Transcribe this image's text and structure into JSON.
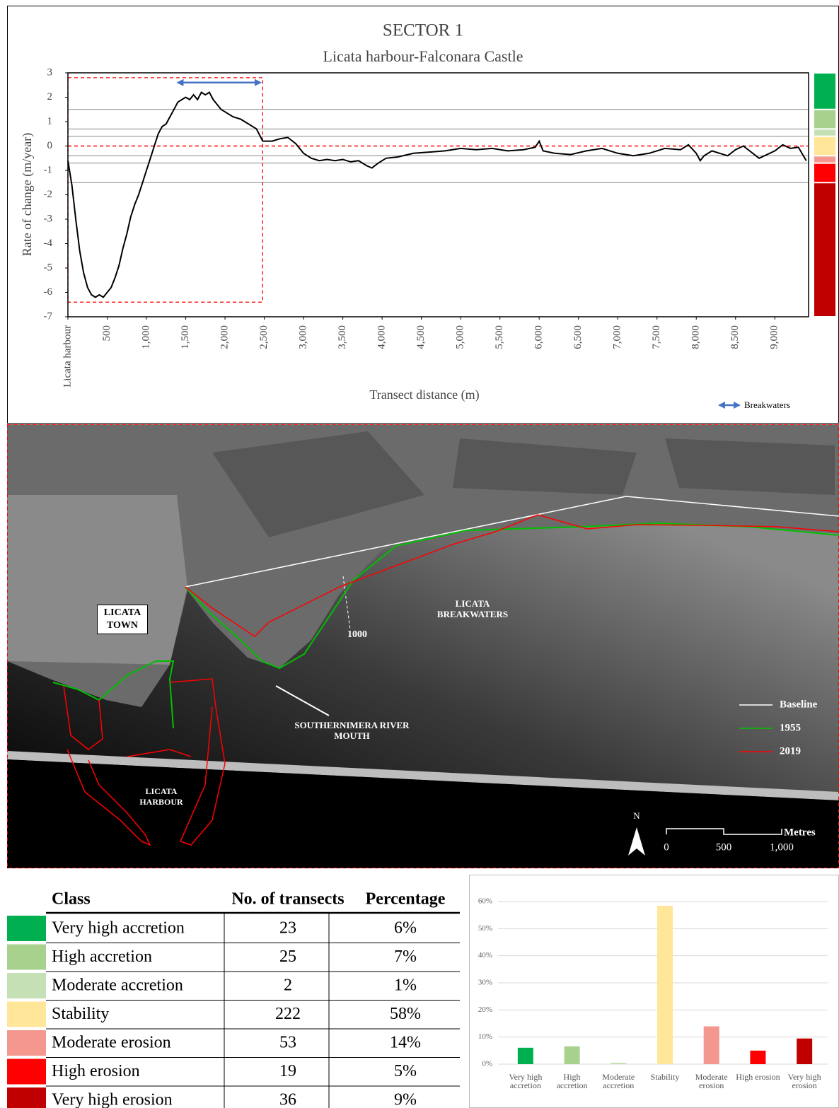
{
  "chart_data": [
    {
      "type": "line",
      "title": "SECTOR 1",
      "subtitle": "Licata harbour-Falconara Castle",
      "x_label": "Transect distance (m)",
      "y_label": "Rate of change (m/year)",
      "x": [
        0,
        50,
        100,
        150,
        200,
        250,
        300,
        350,
        400,
        450,
        500,
        550,
        600,
        650,
        700,
        750,
        800,
        850,
        900,
        950,
        1000,
        1050,
        1100,
        1150,
        1200,
        1250,
        1300,
        1350,
        1400,
        1450,
        1500,
        1550,
        1600,
        1650,
        1700,
        1750,
        1800,
        1850,
        1900,
        1950,
        2000,
        2100,
        2200,
        2300,
        2400,
        2480,
        2600,
        2700,
        2800,
        2900,
        3000,
        3100,
        3200,
        3300,
        3400,
        3500,
        3600,
        3700,
        3800,
        3870,
        3950,
        4050,
        4200,
        4400,
        4600,
        4800,
        5000,
        5200,
        5400,
        5600,
        5800,
        5950,
        6000,
        6050,
        6200,
        6400,
        6600,
        6800,
        7000,
        7200,
        7400,
        7600,
        7800,
        7900,
        8000,
        8050,
        8100,
        8200,
        8400,
        8500,
        8600,
        8800,
        9000,
        9100,
        9200,
        9300,
        9400
      ],
      "values": [
        -0.6,
        -1.6,
        -3.0,
        -4.3,
        -5.2,
        -5.8,
        -6.1,
        -6.2,
        -6.1,
        -6.2,
        -6.0,
        -5.8,
        -5.4,
        -4.9,
        -4.2,
        -3.6,
        -2.9,
        -2.4,
        -2.0,
        -1.5,
        -1.0,
        -0.5,
        0.0,
        0.5,
        0.8,
        0.9,
        1.2,
        1.5,
        1.8,
        1.9,
        2.0,
        1.9,
        2.1,
        1.9,
        2.2,
        2.1,
        2.2,
        1.9,
        1.7,
        1.5,
        1.4,
        1.2,
        1.1,
        0.9,
        0.7,
        0.2,
        0.2,
        0.3,
        0.35,
        0.1,
        -0.3,
        -0.5,
        -0.6,
        -0.55,
        -0.6,
        -0.55,
        -0.65,
        -0.6,
        -0.8,
        -0.9,
        -0.7,
        -0.5,
        -0.45,
        -0.3,
        -0.25,
        -0.2,
        -0.1,
        -0.15,
        -0.1,
        -0.2,
        -0.15,
        -0.05,
        0.2,
        -0.2,
        -0.3,
        -0.35,
        -0.2,
        -0.1,
        -0.3,
        -0.4,
        -0.3,
        -0.1,
        -0.15,
        0.05,
        -0.3,
        -0.6,
        -0.4,
        -0.2,
        -0.4,
        -0.15,
        0.0,
        -0.5,
        -0.2,
        0.05,
        -0.1,
        -0.05,
        -0.6
      ],
      "color": "#000000",
      "xlim": [
        0,
        9430
      ],
      "ylim": [
        -7,
        3
      ],
      "xticks": [
        {
          "value": 0,
          "label": "Licata harbour"
        },
        500,
        {
          "value": 1000,
          "label": "1,000"
        },
        {
          "value": 1500,
          "label": "1,500"
        },
        {
          "value": 2000,
          "label": "2,000"
        },
        {
          "value": 2500,
          "label": "2,500"
        },
        {
          "value": 3000,
          "label": "3,000"
        },
        {
          "value": 3500,
          "label": "3,500"
        },
        {
          "value": 4000,
          "label": "4,000"
        },
        {
          "value": 4500,
          "label": "4,500"
        },
        {
          "value": 5000,
          "label": "5,000"
        },
        {
          "value": 5500,
          "label": "5,500"
        },
        {
          "value": 6000,
          "label": "6,000"
        },
        {
          "value": 6500,
          "label": "6,500"
        },
        {
          "value": 7000,
          "label": "7,000"
        },
        {
          "value": 7500,
          "label": "7,500"
        },
        {
          "value": 8000,
          "label": "8,000"
        },
        {
          "value": 8500,
          "label": "8,500"
        },
        {
          "value": 9000,
          "label": "9,000"
        }
      ],
      "yticks": [
        3,
        2,
        1,
        0,
        -1,
        -2,
        -3,
        -4,
        -5,
        -6,
        -7
      ],
      "bands": [
        {
          "from": 1.5,
          "to": 3,
          "color": "#00b050"
        },
        {
          "from": 0.7,
          "to": 1.5,
          "color": "#a9d18e"
        },
        {
          "from": 0.4,
          "to": 0.7,
          "color": "#c5e0b4"
        },
        {
          "from": -0.4,
          "to": 0.4,
          "color": "#ffe699"
        },
        {
          "from": -0.7,
          "to": -0.4,
          "color": "#f4978e"
        },
        {
          "from": -1.5,
          "to": -0.7,
          "color": "#ff0000"
        },
        {
          "from": -7,
          "to": -1.5,
          "color": "#c00000"
        }
      ],
      "zero_line": {
        "value": 0,
        "color": "#ff0000"
      },
      "breakwaters": {
        "label": "Breakwaters",
        "x": [
          1400,
          2450
        ],
        "y": 2.6,
        "color": "#4472c4"
      },
      "focus_box": {
        "x": [
          0,
          2480
        ],
        "y": [
          -6.4,
          2.8
        ],
        "color": "#ff0000"
      }
    },
    {
      "type": "bar",
      "categories": [
        "Very high accretion",
        "High accretion",
        "Moderate accretion",
        "Stability",
        "Moderate erosion",
        "High erosion",
        "Very high erosion"
      ],
      "values": [
        6.05,
        6.58,
        0.53,
        58.42,
        13.95,
        5.0,
        9.47
      ],
      "colors": [
        "#00b050",
        "#a9d18e",
        "#c5e0b4",
        "#ffe699",
        "#f4978e",
        "#ff0000",
        "#c00000"
      ],
      "ylim": [
        0,
        60
      ],
      "yticks": [
        {
          "value": 0,
          "label": "0%"
        },
        {
          "value": 10,
          "label": "10%"
        },
        {
          "value": 20,
          "label": "20%"
        },
        {
          "value": 30,
          "label": "30%"
        },
        {
          "value": 40,
          "label": "40%"
        },
        {
          "value": 50,
          "label": "50%"
        },
        {
          "value": 60,
          "label": "60%"
        }
      ],
      "grid": true
    }
  ],
  "map": {
    "labels": {
      "town": "LICATA TOWN",
      "breakwaters": "LICATA BREAKWATERS",
      "transect": "1000",
      "river_mouth": "SOUTHERNIMERA RIVER MOUTH",
      "harbour": "LICATA HARBOUR",
      "north": "N"
    },
    "legend": [
      {
        "name": "Baseline",
        "color": "#ffffff"
      },
      {
        "name": "1955",
        "color": "#00c000"
      },
      {
        "name": "2019",
        "color": "#ff0000"
      }
    ],
    "scale": {
      "ticks": [
        "0",
        "500",
        "1,000"
      ],
      "unit": "Metres"
    }
  },
  "table": {
    "header": [
      "Class",
      "No. of transects",
      "Percentage"
    ],
    "rows": [
      {
        "color": "#00b050",
        "cells": [
          "Very high accretion",
          23,
          "6%"
        ]
      },
      {
        "color": "#a9d18e",
        "cells": [
          "High accretion",
          25,
          "7%"
        ]
      },
      {
        "color": "#c5e0b4",
        "cells": [
          "Moderate accretion",
          2,
          "1%"
        ]
      },
      {
        "color": "#ffe699",
        "cells": [
          "Stability",
          222,
          "58%"
        ]
      },
      {
        "color": "#f4978e",
        "cells": [
          "Moderate erosion",
          53,
          "14%"
        ]
      },
      {
        "color": "#ff0000",
        "cells": [
          "High erosion",
          19,
          "5%"
        ]
      },
      {
        "color": "#c00000",
        "cells": [
          "Very high erosion",
          36,
          "9%"
        ]
      }
    ]
  }
}
